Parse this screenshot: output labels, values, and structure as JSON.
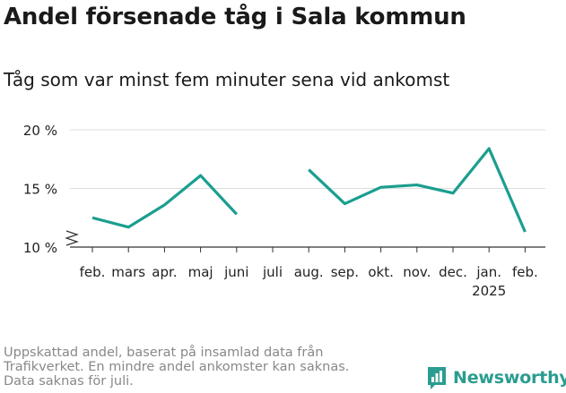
{
  "title": "Andel försenade tåg i Sala kommun",
  "subtitle": "Tåg som var minst fem minuter sena vid ankomst",
  "footnote": [
    "Uppskattad andel, baserat på insamlad data från",
    "Trafikverket. En mindre andel ankomster kan saknas.",
    "Data saknas för juli."
  ],
  "brand": "Newsworthy",
  "colors": {
    "line": "#1a9e8f",
    "grid": "#dddddd",
    "axis": "#333333"
  },
  "chart_data": {
    "type": "line",
    "categories": [
      "feb.",
      "mars",
      "apr.",
      "maj",
      "juni",
      "juli",
      "aug.",
      "sep.",
      "okt.",
      "nov.",
      "dec.",
      "jan.",
      "feb."
    ],
    "year_label": {
      "index": 11,
      "text": "2025"
    },
    "series": [
      {
        "values": [
          12.5,
          11.7,
          13.6,
          16.1,
          12.8,
          null,
          16.6,
          13.7,
          15.1,
          15.3,
          14.6,
          18.4,
          11.3
        ]
      }
    ],
    "ylim": [
      10,
      20
    ],
    "yticks": [
      10,
      15,
      20
    ],
    "ytick_labels": [
      "10 %",
      "15 %",
      "20 %"
    ],
    "y_axis_break": true,
    "grid": true,
    "xlabel": "",
    "ylabel": ""
  }
}
